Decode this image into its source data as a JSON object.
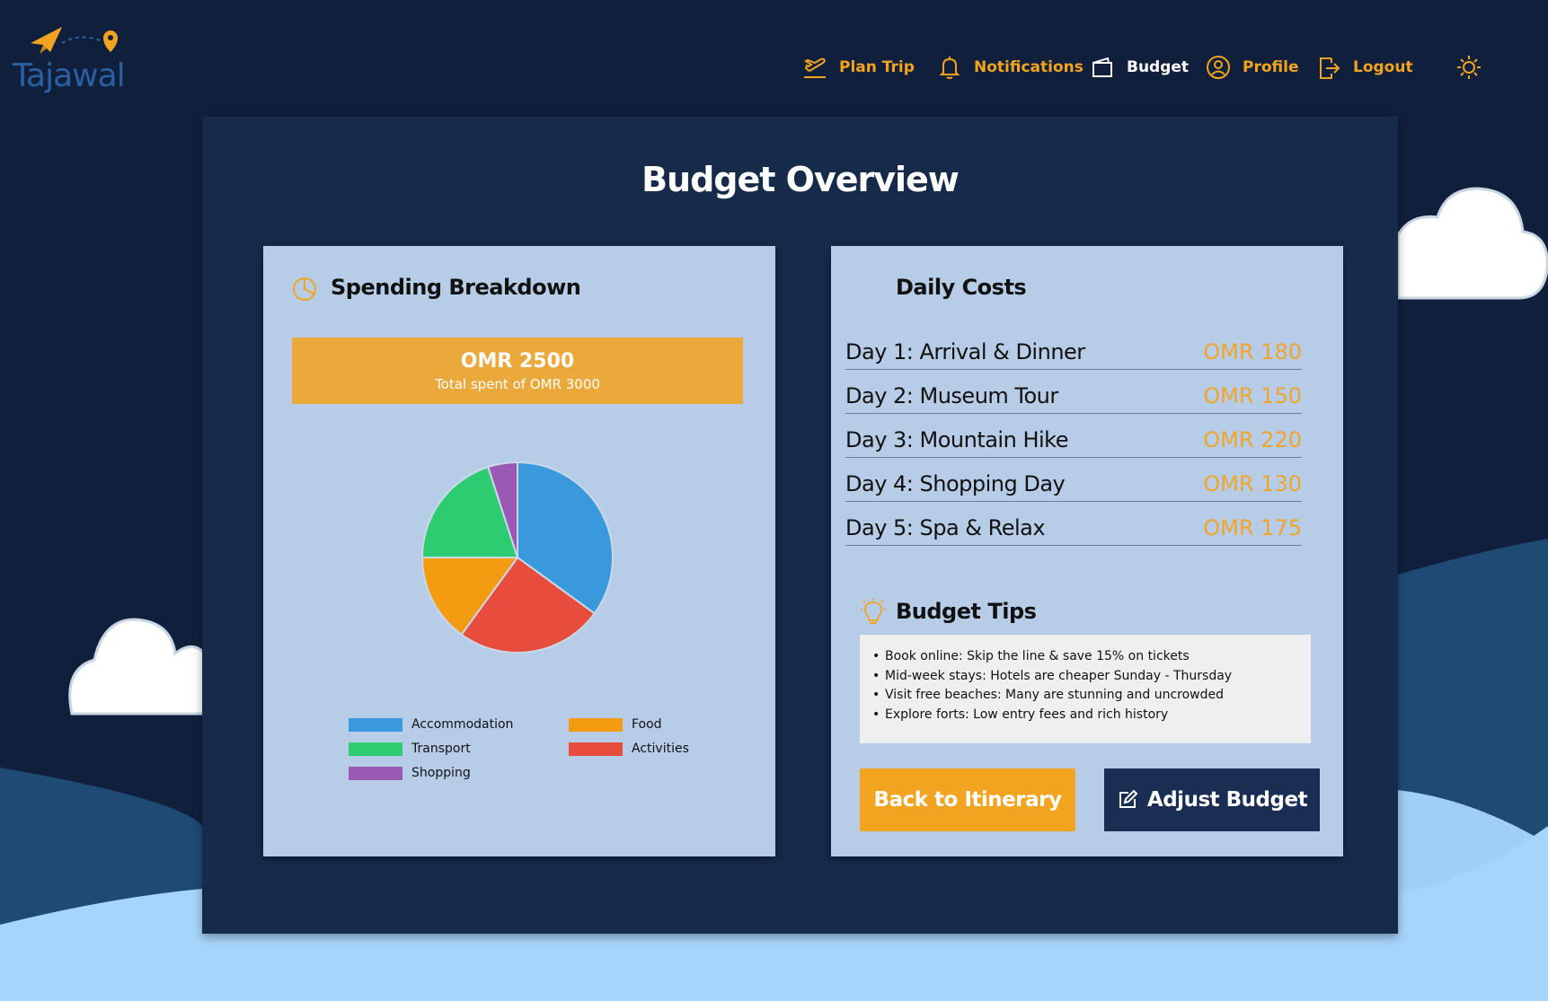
{
  "brand": {
    "name": "Tajawal"
  },
  "nav": {
    "items": [
      {
        "label": "Plan Trip",
        "icon": "airplane-takeoff-icon"
      },
      {
        "label": "Notifications",
        "icon": "bell-icon"
      },
      {
        "label": "Budget",
        "icon": "wallet-icon",
        "active": true
      },
      {
        "label": "Profile",
        "icon": "user-circle-icon"
      },
      {
        "label": "Logout",
        "icon": "logout-icon"
      }
    ],
    "theme_toggle_icon": "sun-icon"
  },
  "page": {
    "title": "Budget Overview"
  },
  "spending": {
    "title": "Spending Breakdown",
    "icon": "pie-chart-icon",
    "total_amount": "OMR 2500",
    "total_sub": "Total spent of OMR 3000"
  },
  "chart_data": {
    "type": "pie",
    "categories": [
      "Accommodation",
      "Activities",
      "Food",
      "Transport",
      "Shopping"
    ],
    "values": [
      35,
      25,
      15,
      20,
      5
    ],
    "colors": [
      "#3a98dd",
      "#e74c3c",
      "#f39c12",
      "#2ecc71",
      "#9b59b6"
    ],
    "legend": [
      "Accommodation",
      "Food",
      "Transport",
      "Activities",
      "Shopping"
    ],
    "legend_position": "bottom"
  },
  "daily": {
    "title": "Daily Costs",
    "rows": [
      {
        "label": "Day 1: Arrival & Dinner",
        "cost": "OMR 180"
      },
      {
        "label": "Day 2: Museum Tour",
        "cost": "OMR 150"
      },
      {
        "label": "Day 3: Mountain Hike",
        "cost": "OMR 220"
      },
      {
        "label": "Day 4: Shopping Day",
        "cost": "OMR 130"
      },
      {
        "label": "Day 5: Spa & Relax",
        "cost": "OMR 175"
      }
    ]
  },
  "tips": {
    "title": "Budget Tips",
    "icon": "lightbulb-icon",
    "items": [
      "Book online: Skip the line & save 15% on tickets",
      "Mid-week stays: Hotels are cheaper Sunday - Thursday",
      "Visit free beaches: Many are stunning and uncrowded",
      "Explore forts: Low entry fees and rich history"
    ]
  },
  "buttons": {
    "back": "Back to Itinerary",
    "adjust": "Adjust Budget",
    "adjust_icon": "edit-icon"
  },
  "colors": {
    "background": "#10203c",
    "panel": "#162a4a",
    "card": "#b7cde7",
    "accent": "#f2a421",
    "button_dark": "#1a2e54"
  }
}
